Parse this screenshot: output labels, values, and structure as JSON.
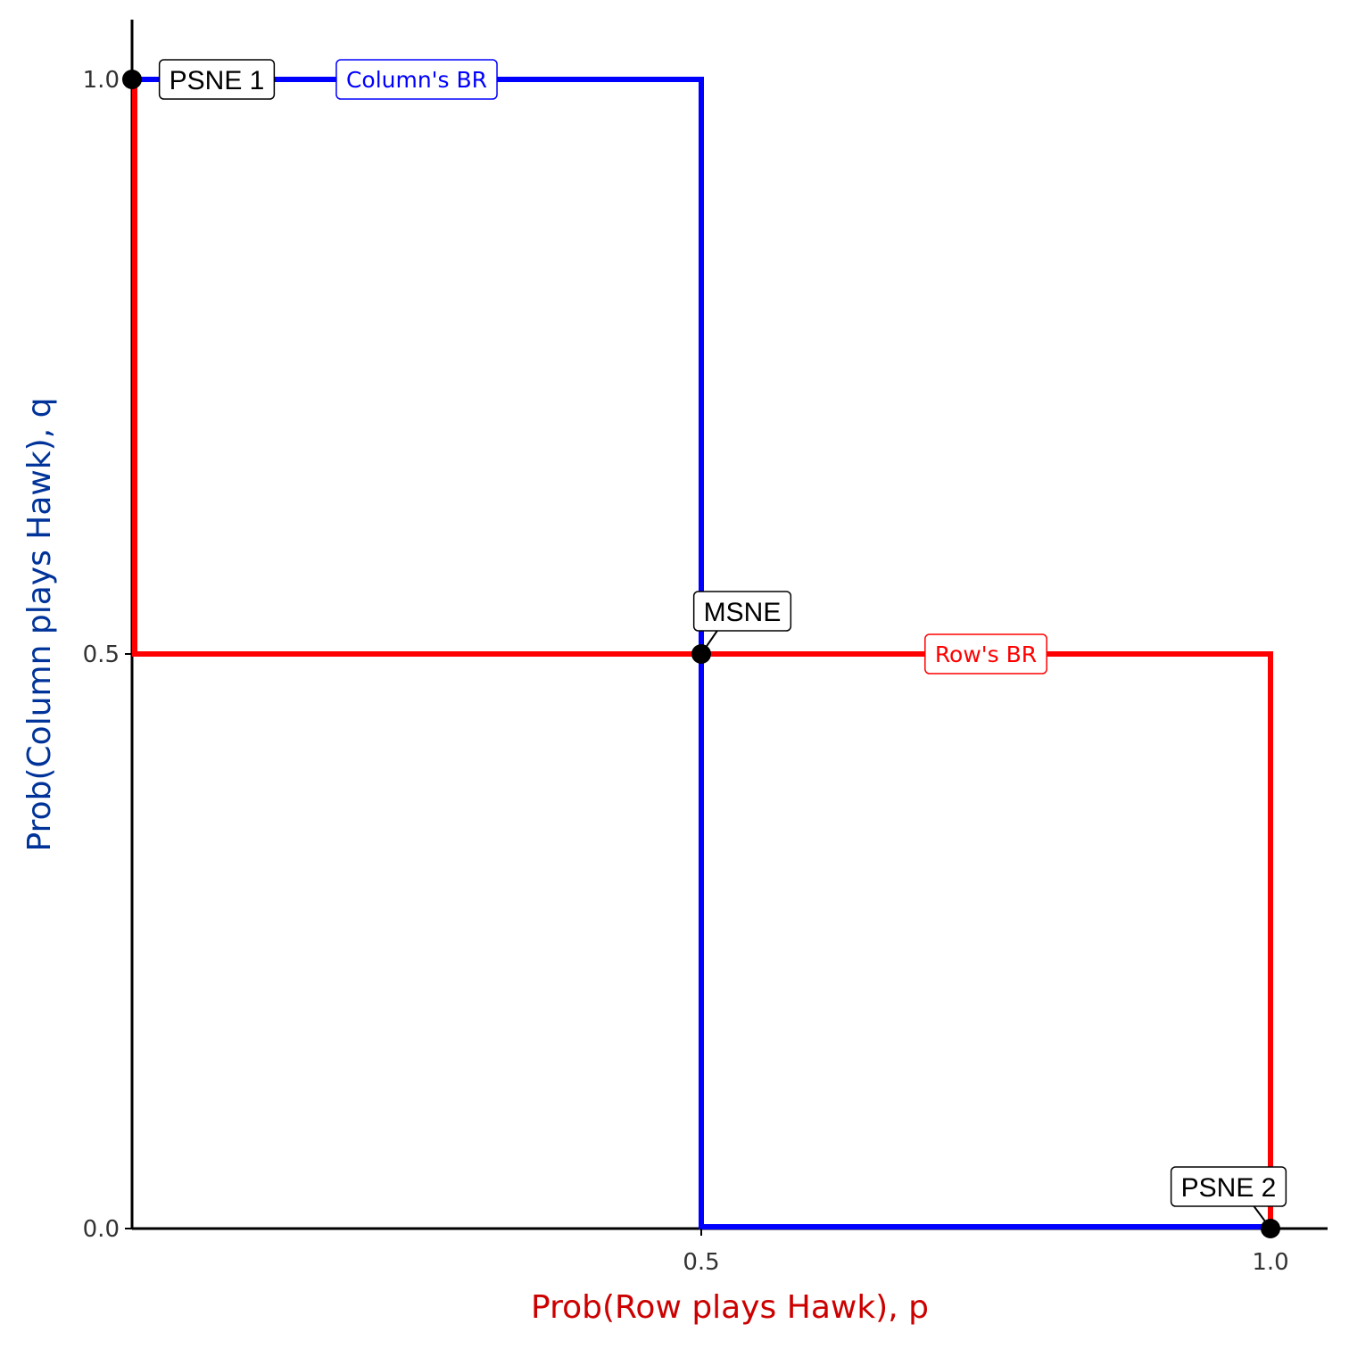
{
  "chart_data": {
    "type": "line",
    "title": "",
    "xlabel": "Prob(Row plays Hawk), p",
    "ylabel": "Prob(Column plays Hawk), q",
    "xlim": [
      0,
      1
    ],
    "ylim": [
      0,
      1
    ],
    "x_ticks": [
      0.5,
      1.0
    ],
    "x_tick_labels": [
      "0.5",
      "1.0"
    ],
    "y_ticks": [
      0.0,
      0.5,
      1.0
    ],
    "y_tick_labels": [
      "0.0",
      "0.5",
      "1.0"
    ],
    "grid": false,
    "series": [
      {
        "name": "Column's BR",
        "color": "#0000ff",
        "points": [
          [
            0,
            1
          ],
          [
            0.5,
            1
          ],
          [
            0.5,
            0
          ],
          [
            1,
            0
          ]
        ],
        "label_at": [
          0.25,
          1
        ]
      },
      {
        "name": "Row's BR",
        "color": "#ff0000",
        "points": [
          [
            0,
            1
          ],
          [
            0,
            0.5
          ],
          [
            1,
            0.5
          ],
          [
            1,
            0
          ]
        ],
        "label_at": [
          0.75,
          0.5
        ]
      }
    ],
    "equilibria": [
      {
        "label": "PSNE 1",
        "x": 0,
        "y": 1
      },
      {
        "label": "MSNE",
        "x": 0.5,
        "y": 0.5
      },
      {
        "label": "PSNE 2",
        "x": 1,
        "y": 0
      }
    ],
    "colors": {
      "xlabel": "#cc0000",
      "ylabel": "#003399",
      "axis": "#000000",
      "point": "#000000"
    }
  }
}
